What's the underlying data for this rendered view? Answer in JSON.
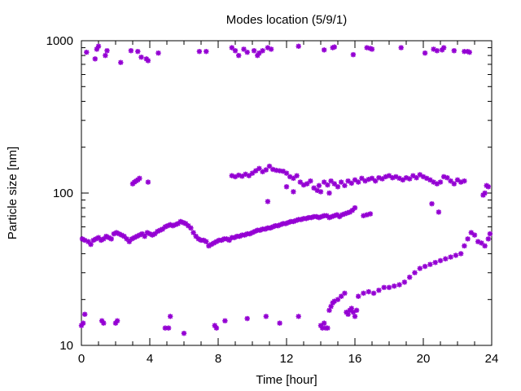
{
  "chart_data": {
    "type": "scatter",
    "title": "Modes location (5/9/1)",
    "xlabel": "Time [hour]",
    "ylabel": "Particle size [nm]",
    "xlim": [
      0,
      24
    ],
    "ylim": [
      10,
      1000
    ],
    "yscale": "log",
    "grid": false,
    "legend": "none",
    "marker_color": "#9400d3",
    "x_ticks": [
      {
        "value": 0,
        "label": "0"
      },
      {
        "value": 4,
        "label": "4"
      },
      {
        "value": 8,
        "label": "8"
      },
      {
        "value": 12,
        "label": "12"
      },
      {
        "value": 16,
        "label": "16"
      },
      {
        "value": 20,
        "label": "20"
      },
      {
        "value": 24,
        "label": "24"
      }
    ],
    "y_ticks": [
      {
        "value": 10,
        "label": "10"
      },
      {
        "value": 100,
        "label": "100"
      },
      {
        "value": 1000,
        "label": "1000"
      }
    ],
    "series": [
      {
        "x": [
          0.05,
          0.2,
          0.4,
          0.55,
          0.7,
          0.85,
          1.0,
          1.15,
          1.3,
          1.45,
          1.6,
          1.75,
          1.9,
          2.05,
          2.2,
          2.35,
          2.5,
          2.65,
          2.8,
          2.95,
          3.1,
          3.25,
          3.4,
          3.55,
          3.7,
          3.85,
          4.0,
          4.15,
          4.3,
          4.45,
          4.6,
          4.75,
          4.9,
          5.05,
          5.2,
          5.35,
          5.5,
          5.65,
          5.8,
          5.95,
          6.1,
          6.25,
          6.4,
          6.55,
          6.7,
          6.85,
          7.0,
          7.15,
          7.3,
          7.45,
          7.6,
          7.75,
          7.9,
          8.05,
          8.2,
          8.35,
          8.5,
          8.65,
          8.8,
          8.95,
          9.1,
          9.25,
          9.4,
          9.55,
          9.7,
          9.85,
          10.0,
          10.15,
          10.3,
          10.45,
          10.6,
          10.75,
          10.9,
          11.05,
          11.2,
          11.35,
          11.5,
          11.65,
          11.8,
          11.95,
          12.1,
          12.25,
          12.4,
          12.55,
          12.7,
          12.85,
          13.0,
          13.15,
          13.3,
          13.45,
          13.6,
          13.75,
          13.9,
          14.05,
          14.2,
          14.35,
          14.5,
          14.65,
          14.8,
          14.95,
          15.1,
          15.25,
          15.4,
          15.55,
          15.7,
          15.85,
          16.0
        ],
        "y": [
          50,
          49,
          48,
          46,
          49,
          50,
          51,
          49,
          50,
          52,
          51,
          50,
          54,
          55,
          54,
          53,
          52,
          50,
          48,
          50,
          51,
          52,
          53,
          54,
          52,
          55,
          54,
          53,
          54,
          56,
          57,
          58,
          60,
          61,
          62,
          61,
          62,
          63,
          65,
          64,
          63,
          61,
          59,
          55,
          52,
          50,
          49,
          49,
          48,
          45,
          46,
          47,
          48,
          49,
          49,
          50,
          50,
          49,
          51,
          51,
          52,
          52,
          53,
          53,
          54,
          54,
          55,
          56,
          57,
          57,
          58,
          58,
          59,
          59,
          60,
          61,
          61,
          62,
          63,
          63,
          64,
          65,
          65,
          66,
          67,
          67,
          68,
          68,
          69,
          69,
          70,
          70,
          69,
          70,
          71,
          71,
          69,
          70,
          71,
          72,
          70,
          72,
          73,
          74,
          75,
          77,
          80
        ]
      },
      {
        "x": [
          16.5,
          16.7,
          16.9
        ],
        "y": [
          71,
          72,
          73
        ]
      },
      {
        "x": [
          8.8,
          9.0,
          9.2,
          9.4,
          9.6,
          9.8,
          10.0,
          10.2,
          10.4,
          10.6,
          10.8,
          11.0,
          11.2,
          11.4,
          11.6,
          11.8,
          12.0,
          12.2,
          12.4,
          12.6,
          12.8,
          13.0,
          13.2,
          13.4,
          13.6,
          13.8,
          14.0,
          14.2,
          14.4,
          14.6,
          14.8,
          15.0,
          15.2,
          15.4,
          15.6,
          15.8,
          16.0,
          16.2,
          16.4,
          16.6,
          16.8,
          17.0,
          17.2,
          17.4,
          17.6,
          17.8,
          18.0,
          18.2,
          18.4,
          18.6,
          18.8,
          19.0,
          19.2,
          19.4,
          19.6,
          19.8,
          20.0,
          20.2,
          20.4,
          20.6,
          20.8,
          21.0,
          21.2,
          21.4,
          21.6,
          21.8,
          22.0,
          22.2,
          22.4
        ],
        "y": [
          130,
          128,
          131,
          129,
          133,
          130,
          135,
          140,
          145,
          138,
          142,
          150,
          143,
          141,
          140,
          139,
          135,
          128,
          125,
          130,
          118,
          113,
          115,
          120,
          108,
          104,
          102,
          118,
          113,
          120,
          115,
          110,
          118,
          112,
          120,
          116,
          122,
          118,
          125,
          120,
          123,
          125,
          120,
          126,
          124,
          128,
          130,
          126,
          128,
          125,
          122,
          126,
          124,
          130,
          126,
          132,
          128,
          125,
          122,
          118,
          115,
          118,
          128,
          126,
          120,
          115,
          122,
          118,
          120
        ]
      },
      {
        "x": [
          3.0,
          3.1,
          3.2,
          3.3,
          3.4,
          3.9,
          10.9,
          12.4,
          12.0,
          13.9,
          14.5,
          20.5,
          20.9,
          23.5,
          23.6,
          23.7,
          23.8
        ],
        "y": [
          115,
          118,
          120,
          122,
          125,
          118,
          88,
          102,
          110,
          112,
          100,
          85,
          75,
          97,
          100,
          112,
          110
        ]
      },
      {
        "x": [
          0.0,
          0.1,
          0.2,
          1.2,
          1.3,
          2.0,
          2.1,
          4.9,
          5.1,
          5.2,
          6.0,
          7.8,
          7.9,
          8.4,
          9.7,
          10.8,
          11.6,
          12.7,
          14.0,
          14.1,
          14.2,
          14.3,
          14.4
        ],
        "y": [
          13.5,
          14,
          16,
          14.5,
          14,
          14,
          14.5,
          13,
          13,
          15.5,
          12,
          13.5,
          13,
          14.5,
          15,
          15.5,
          14,
          15.5,
          13.5,
          13,
          14,
          13,
          13
        ]
      },
      {
        "x": [
          14.5,
          14.6,
          14.7,
          14.8,
          15.0,
          15.2,
          15.4,
          15.5,
          15.6,
          15.7,
          15.8,
          15.9,
          16.0,
          16.1,
          16.2,
          16.5,
          16.8,
          17.1,
          17.4,
          17.7,
          18.0,
          18.3,
          18.6,
          18.9,
          19.2,
          19.5,
          19.8,
          20.1,
          20.4,
          20.7,
          21.0,
          21.3,
          21.6,
          21.9,
          22.2,
          22.4,
          22.6,
          22.8,
          23.0,
          23.2,
          23.4,
          23.6,
          23.8,
          23.9
        ],
        "y": [
          17,
          18,
          19,
          19.5,
          20,
          21,
          22,
          16.5,
          16,
          17,
          17.5,
          16.5,
          15.5,
          17,
          21,
          22,
          22.5,
          22,
          23,
          24,
          24,
          24.5,
          25,
          26,
          28,
          30,
          32,
          33,
          34,
          35,
          36,
          37,
          38,
          39,
          40,
          45,
          50,
          55,
          53,
          48,
          47,
          45,
          50,
          54
        ]
      },
      {
        "x": [
          0.3,
          0.8,
          0.9,
          1.0,
          1.4,
          1.5,
          2.3,
          2.9,
          3.3,
          3.5,
          3.8,
          3.9,
          4.5,
          6.9,
          7.3,
          8.8,
          9.0,
          9.2,
          9.5,
          9.7,
          10.1,
          10.3,
          10.4,
          10.6,
          10.9,
          11.1,
          12.7,
          14.2,
          14.7,
          14.8,
          15.9,
          16.7,
          16.9,
          17.0,
          18.7,
          20.1,
          20.6,
          20.8,
          21.1,
          21.2,
          21.8,
          22.4,
          22.6,
          22.7
        ],
        "y": [
          840,
          760,
          880,
          920,
          800,
          860,
          720,
          860,
          850,
          780,
          760,
          740,
          830,
          850,
          850,
          900,
          860,
          800,
          880,
          840,
          860,
          800,
          830,
          860,
          900,
          880,
          920,
          870,
          900,
          910,
          810,
          900,
          890,
          880,
          900,
          830,
          880,
          860,
          870,
          900,
          860,
          850,
          850,
          840
        ]
      }
    ]
  }
}
